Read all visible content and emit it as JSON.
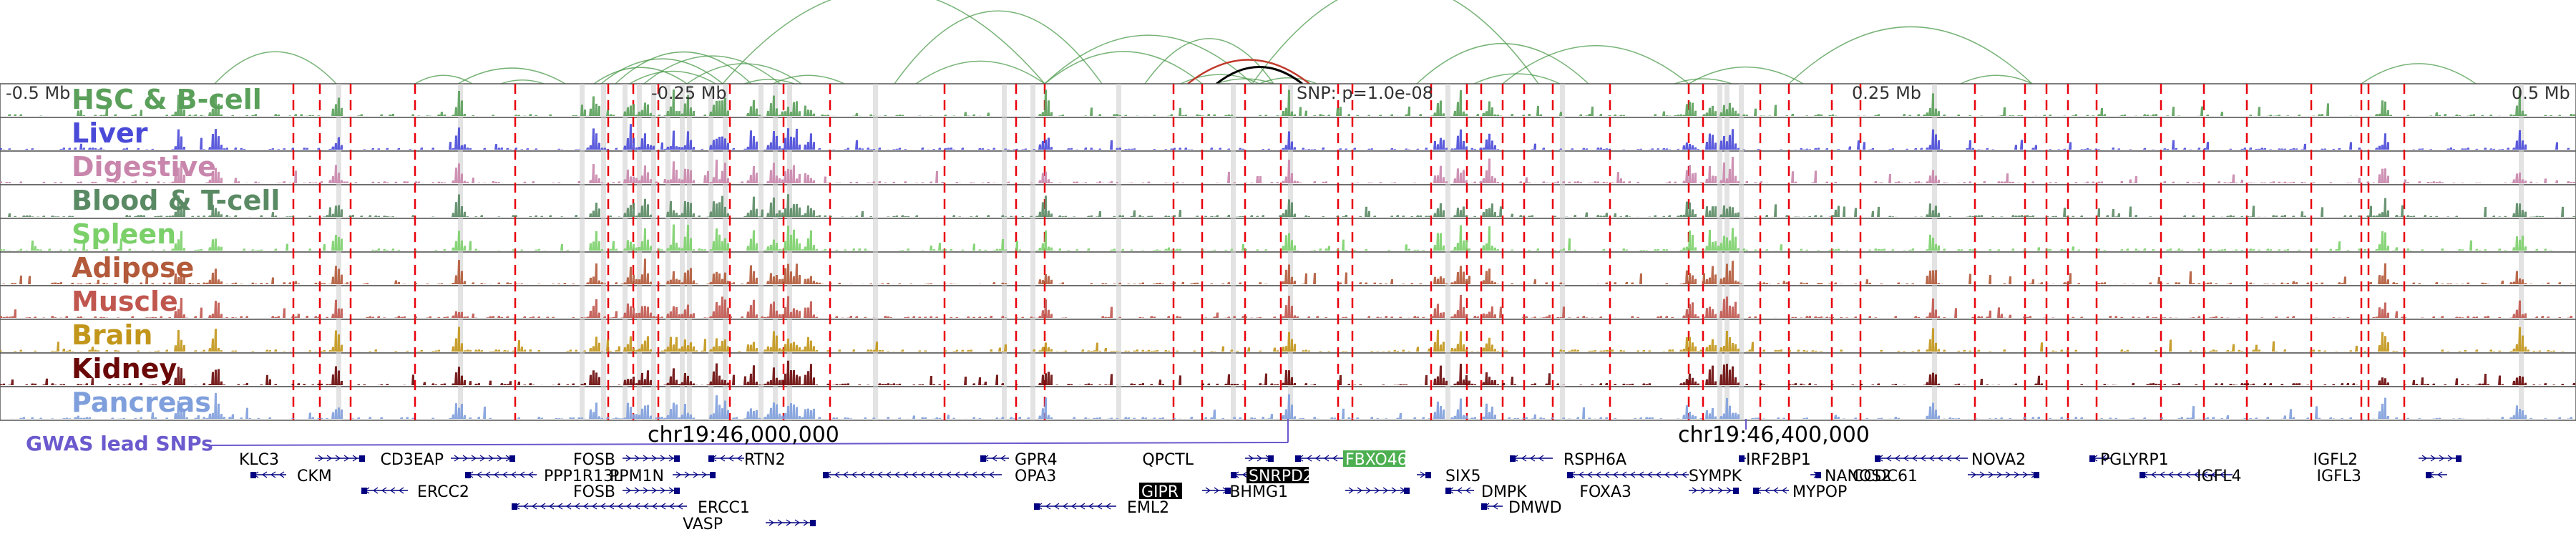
{
  "axis": {
    "ticks": [
      "-0.5 Mb",
      "-0.25 Mb",
      "0.25 Mb",
      "0.5 Mb"
    ],
    "snp_label": "SNP: p=1.0e-08"
  },
  "tracks": [
    {
      "label": "HSC & B-cell",
      "color": "#5aa05a"
    },
    {
      "label": "Liver",
      "color": "#4a4ad8"
    },
    {
      "label": "Digestive",
      "color": "#c986ac"
    },
    {
      "label": "Blood & T-cell",
      "color": "#5a8a64"
    },
    {
      "label": "Spleen",
      "color": "#7bd06a"
    },
    {
      "label": "Adipose",
      "color": "#b35a3a"
    },
    {
      "label": "Muscle",
      "color": "#c0574f"
    },
    {
      "label": "Brain",
      "color": "#c2961a"
    },
    {
      "label": "Kidney",
      "color": "#6a0808"
    },
    {
      "label": "Pancreas",
      "color": "#7f9fdc"
    }
  ],
  "gwas": {
    "label": "GWAS lead SNPs",
    "color": "#6a5acd"
  },
  "coords": [
    "chr19:46,000,000",
    "chr19:46,400,000"
  ],
  "genes": [
    {
      "name": "KLC3",
      "strand": "+"
    },
    {
      "name": "CKM",
      "strand": "-"
    },
    {
      "name": "ERCC2",
      "strand": "-"
    },
    {
      "name": "CD3EAP",
      "strand": "+"
    },
    {
      "name": "PPP1R13L",
      "strand": "-"
    },
    {
      "name": "FOSB",
      "strand": "+"
    },
    {
      "name": "RTN2",
      "strand": "-"
    },
    {
      "name": "PPM1N",
      "strand": "+"
    },
    {
      "name": "FOSB",
      "strand": "+"
    },
    {
      "name": "ERCC1",
      "strand": "-"
    },
    {
      "name": "VASP",
      "strand": "+"
    },
    {
      "name": "GPR4",
      "strand": "-"
    },
    {
      "name": "OPA3",
      "strand": "-"
    },
    {
      "name": "QPCTL",
      "strand": "+"
    },
    {
      "name": "FBXO46",
      "strand": "-",
      "highlight": "#4caf50"
    },
    {
      "name": "SNRPD2",
      "strand": "-",
      "highlight": "#000000"
    },
    {
      "name": "GIPR",
      "strand": "+",
      "highlight": "#000000"
    },
    {
      "name": "EML2",
      "strand": "-"
    },
    {
      "name": "BHMG1",
      "strand": "+"
    },
    {
      "name": "SIX5",
      "strand": "+"
    },
    {
      "name": "DMPK",
      "strand": "-"
    },
    {
      "name": "DMWD",
      "strand": "-"
    },
    {
      "name": "RSPH6A",
      "strand": "-"
    },
    {
      "name": "SYMPK",
      "strand": "-"
    },
    {
      "name": "FOXA3",
      "strand": "+"
    },
    {
      "name": "IRF2BP1",
      "strand": "-"
    },
    {
      "name": "MYPOP",
      "strand": "-"
    },
    {
      "name": "NANOS2",
      "strand": "+"
    },
    {
      "name": "NOVA2",
      "strand": "-"
    },
    {
      "name": "CCDC61",
      "strand": "+"
    },
    {
      "name": "PGLYRP1",
      "strand": "-"
    },
    {
      "name": "IGFL4",
      "strand": "-"
    },
    {
      "name": "IGFL2",
      "strand": "+"
    },
    {
      "name": "IGFL3",
      "strand": "-"
    }
  ]
}
